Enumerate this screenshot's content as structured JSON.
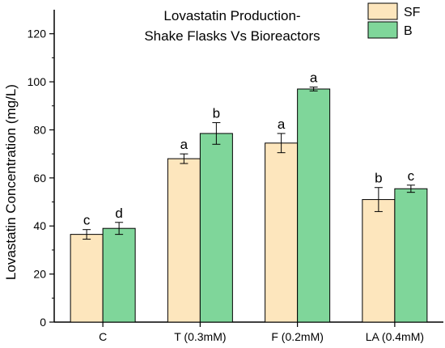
{
  "chart_data": {
    "type": "bar",
    "title_lines": [
      "Lovastatin Production-",
      "Shake Flasks Vs Bioreactors"
    ],
    "xlabel": "",
    "ylabel": "Lovastatin Concentration (mg/L)",
    "categories": [
      "C",
      "T (0.3mM)",
      "F (0.2mM)",
      "LA (0.4mM)"
    ],
    "ylim": [
      0,
      130
    ],
    "yticks": [
      0,
      20,
      40,
      60,
      80,
      100,
      120
    ],
    "legend_position": "top-right",
    "series": [
      {
        "name": "SF",
        "color": "#fde6bd",
        "values": [
          36.5,
          68,
          74.5,
          51
        ],
        "errors": [
          2,
          2,
          4,
          5
        ],
        "letters": [
          "c",
          "a",
          "a",
          "b"
        ]
      },
      {
        "name": "B",
        "color": "#7fd69a",
        "values": [
          39,
          78.5,
          97,
          55.5
        ],
        "errors": [
          2.5,
          4.5,
          0.8,
          1.5
        ],
        "letters": [
          "d",
          "b",
          "a",
          "c"
        ]
      }
    ]
  }
}
